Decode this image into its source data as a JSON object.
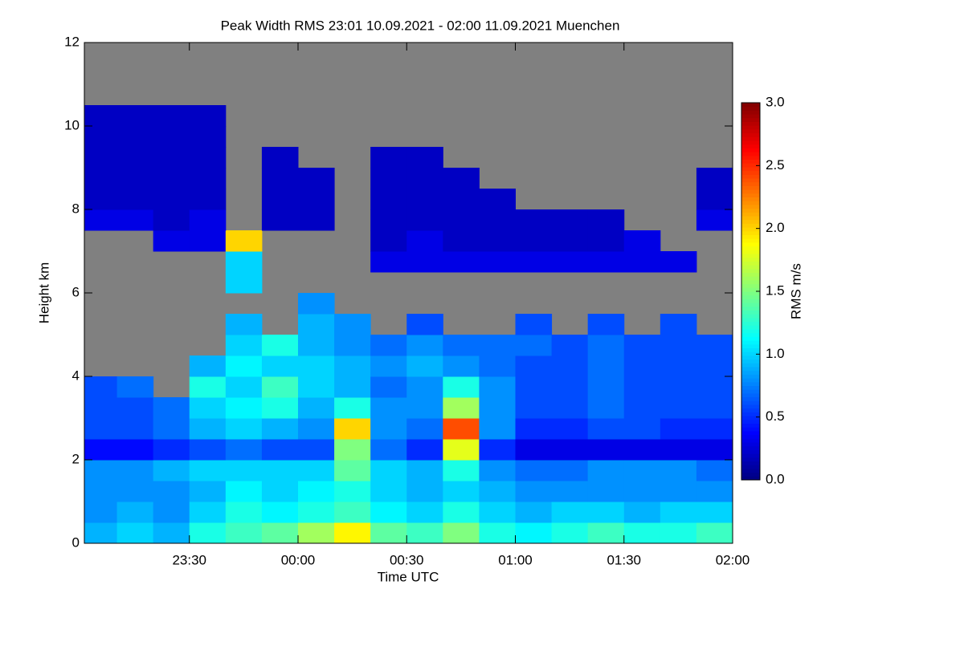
{
  "chart_data": {
    "type": "heatmap",
    "title": "Peak Width RMS   23:01 10.09.2021 - 02:00 11.09.2021 Muenchen",
    "x_label": "Time UTC",
    "y_label": "Height km",
    "xlim": [
      "23:01",
      "02:00"
    ],
    "xticks": [
      "23:30",
      "00:00",
      "00:30",
      "01:00",
      "01:30",
      "02:00"
    ],
    "ylim": [
      0,
      12
    ],
    "yticks": [
      0,
      2,
      4,
      6,
      8,
      10,
      12
    ],
    "x": [
      "23:01",
      "23:10",
      "23:20",
      "23:30",
      "23:40",
      "23:50",
      "00:00",
      "00:10",
      "00:20",
      "00:30",
      "00:40",
      "00:50",
      "01:00",
      "01:10",
      "01:20",
      "01:30",
      "01:40",
      "01:50",
      "02:00"
    ],
    "y": [
      0,
      0.5,
      1,
      1.5,
      2,
      2.5,
      3,
      3.5,
      4,
      4.5,
      5,
      5.5,
      6,
      6.5,
      7,
      7.5,
      8,
      8.5,
      9,
      9.5,
      10,
      10.5,
      11,
      11.5,
      12
    ],
    "z": [
      [
        0.9,
        1.0,
        0.9,
        1.2,
        1.3,
        1.4,
        1.6,
        1.9,
        1.4,
        1.3,
        1.5,
        1.2,
        1.1,
        1.2,
        1.3,
        1.2,
        1.2,
        1.3
      ],
      [
        0.8,
        0.9,
        0.8,
        1.0,
        1.2,
        1.1,
        1.2,
        1.3,
        1.1,
        1.0,
        1.2,
        1.0,
        0.9,
        1.0,
        1.0,
        0.9,
        1.0,
        1.0
      ],
      [
        0.8,
        0.8,
        0.8,
        0.9,
        1.1,
        1.0,
        1.1,
        1.2,
        1.0,
        0.9,
        1.0,
        0.9,
        0.8,
        0.8,
        0.8,
        0.8,
        0.8,
        0.8
      ],
      [
        0.8,
        0.8,
        0.9,
        1.0,
        1.0,
        1.0,
        1.0,
        1.4,
        1.0,
        0.9,
        1.2,
        0.8,
        0.7,
        0.7,
        0.8,
        0.8,
        0.8,
        0.7
      ],
      [
        0.4,
        0.4,
        0.5,
        0.6,
        0.7,
        0.6,
        0.6,
        1.5,
        0.7,
        0.5,
        1.8,
        0.5,
        0.3,
        0.3,
        0.3,
        0.3,
        0.3,
        0.3
      ],
      [
        0.6,
        0.6,
        0.7,
        0.9,
        1.0,
        0.9,
        0.8,
        2.0,
        0.8,
        0.7,
        2.4,
        0.8,
        0.5,
        0.5,
        0.6,
        0.6,
        0.5,
        0.5
      ],
      [
        0.6,
        0.6,
        0.7,
        1.0,
        1.1,
        1.2,
        0.9,
        1.2,
        0.8,
        0.8,
        1.6,
        0.8,
        0.6,
        0.6,
        0.7,
        0.6,
        0.6,
        0.6
      ],
      [
        0.6,
        0.7,
        null,
        1.2,
        1.0,
        1.3,
        1.0,
        0.9,
        0.7,
        0.8,
        1.2,
        0.8,
        0.6,
        0.6,
        0.7,
        0.6,
        0.6,
        0.6
      ],
      [
        null,
        null,
        null,
        0.9,
        1.1,
        1.0,
        1.0,
        0.9,
        0.8,
        0.9,
        0.8,
        0.7,
        0.6,
        0.6,
        0.7,
        0.6,
        0.6,
        0.6
      ],
      [
        null,
        null,
        null,
        null,
        1.0,
        1.2,
        0.9,
        0.8,
        0.7,
        0.8,
        0.7,
        0.7,
        0.7,
        0.6,
        0.7,
        0.6,
        0.6,
        0.6
      ],
      [
        null,
        null,
        null,
        null,
        0.9,
        null,
        0.9,
        0.8,
        null,
        0.6,
        null,
        null,
        0.6,
        null,
        0.6,
        null,
        0.6,
        null
      ],
      [
        null,
        null,
        null,
        null,
        null,
        null,
        0.8,
        null,
        null,
        null,
        null,
        null,
        null,
        null,
        null,
        null,
        null,
        null
      ],
      [
        null,
        null,
        null,
        null,
        1.0,
        null,
        null,
        null,
        null,
        null,
        null,
        null,
        null,
        null,
        null,
        null,
        null,
        null
      ],
      [
        null,
        null,
        null,
        null,
        1.0,
        null,
        null,
        null,
        0.3,
        0.3,
        0.3,
        0.3,
        0.3,
        0.3,
        0.3,
        0.3,
        0.3,
        null
      ],
      [
        null,
        null,
        0.3,
        0.3,
        2.0,
        null,
        null,
        null,
        0.2,
        0.3,
        0.2,
        0.2,
        0.2,
        0.2,
        0.2,
        0.3,
        null,
        null
      ],
      [
        0.3,
        0.3,
        0.2,
        0.3,
        null,
        0.2,
        0.2,
        null,
        0.2,
        0.2,
        0.2,
        0.2,
        0.2,
        0.2,
        0.2,
        null,
        null,
        0.3
      ],
      [
        0.2,
        0.2,
        0.2,
        0.2,
        null,
        0.2,
        0.2,
        null,
        0.2,
        0.2,
        0.2,
        0.2,
        null,
        null,
        null,
        null,
        null,
        0.2
      ],
      [
        0.2,
        0.2,
        0.2,
        0.2,
        null,
        0.2,
        0.2,
        null,
        0.2,
        0.2,
        0.2,
        null,
        null,
        null,
        null,
        null,
        null,
        0.2
      ],
      [
        0.2,
        0.2,
        0.2,
        0.2,
        null,
        0.2,
        null,
        null,
        0.2,
        0.2,
        null,
        null,
        null,
        null,
        null,
        null,
        null,
        null
      ],
      [
        0.2,
        0.2,
        0.2,
        0.2,
        null,
        null,
        null,
        null,
        null,
        null,
        null,
        null,
        null,
        null,
        null,
        null,
        null,
        null
      ],
      [
        0.2,
        0.2,
        0.2,
        0.2,
        null,
        null,
        null,
        null,
        null,
        null,
        null,
        null,
        null,
        null,
        null,
        null,
        null,
        null
      ],
      [
        null,
        null,
        null,
        null,
        null,
        null,
        null,
        null,
        null,
        null,
        null,
        null,
        null,
        null,
        null,
        null,
        null,
        null
      ],
      [
        null,
        null,
        null,
        null,
        null,
        null,
        null,
        null,
        null,
        null,
        null,
        null,
        null,
        null,
        null,
        null,
        null,
        null
      ],
      [
        null,
        null,
        null,
        null,
        null,
        null,
        null,
        null,
        null,
        null,
        null,
        null,
        null,
        null,
        null,
        null,
        null,
        null
      ]
    ],
    "colormap": "jet",
    "background_color": "#808080",
    "zlim": [
      0,
      3
    ],
    "zticks": [
      {
        "value": 0,
        "label": "0.0"
      },
      {
        "value": 0.5,
        "label": "0.5"
      },
      {
        "value": 1,
        "label": "1.0"
      },
      {
        "value": 1.5,
        "label": "1.5"
      },
      {
        "value": 2,
        "label": "2.0"
      },
      {
        "value": 2.5,
        "label": "2.5"
      },
      {
        "value": 3,
        "label": "3.0"
      }
    ],
    "colorbar_label": "RMS m/s"
  }
}
